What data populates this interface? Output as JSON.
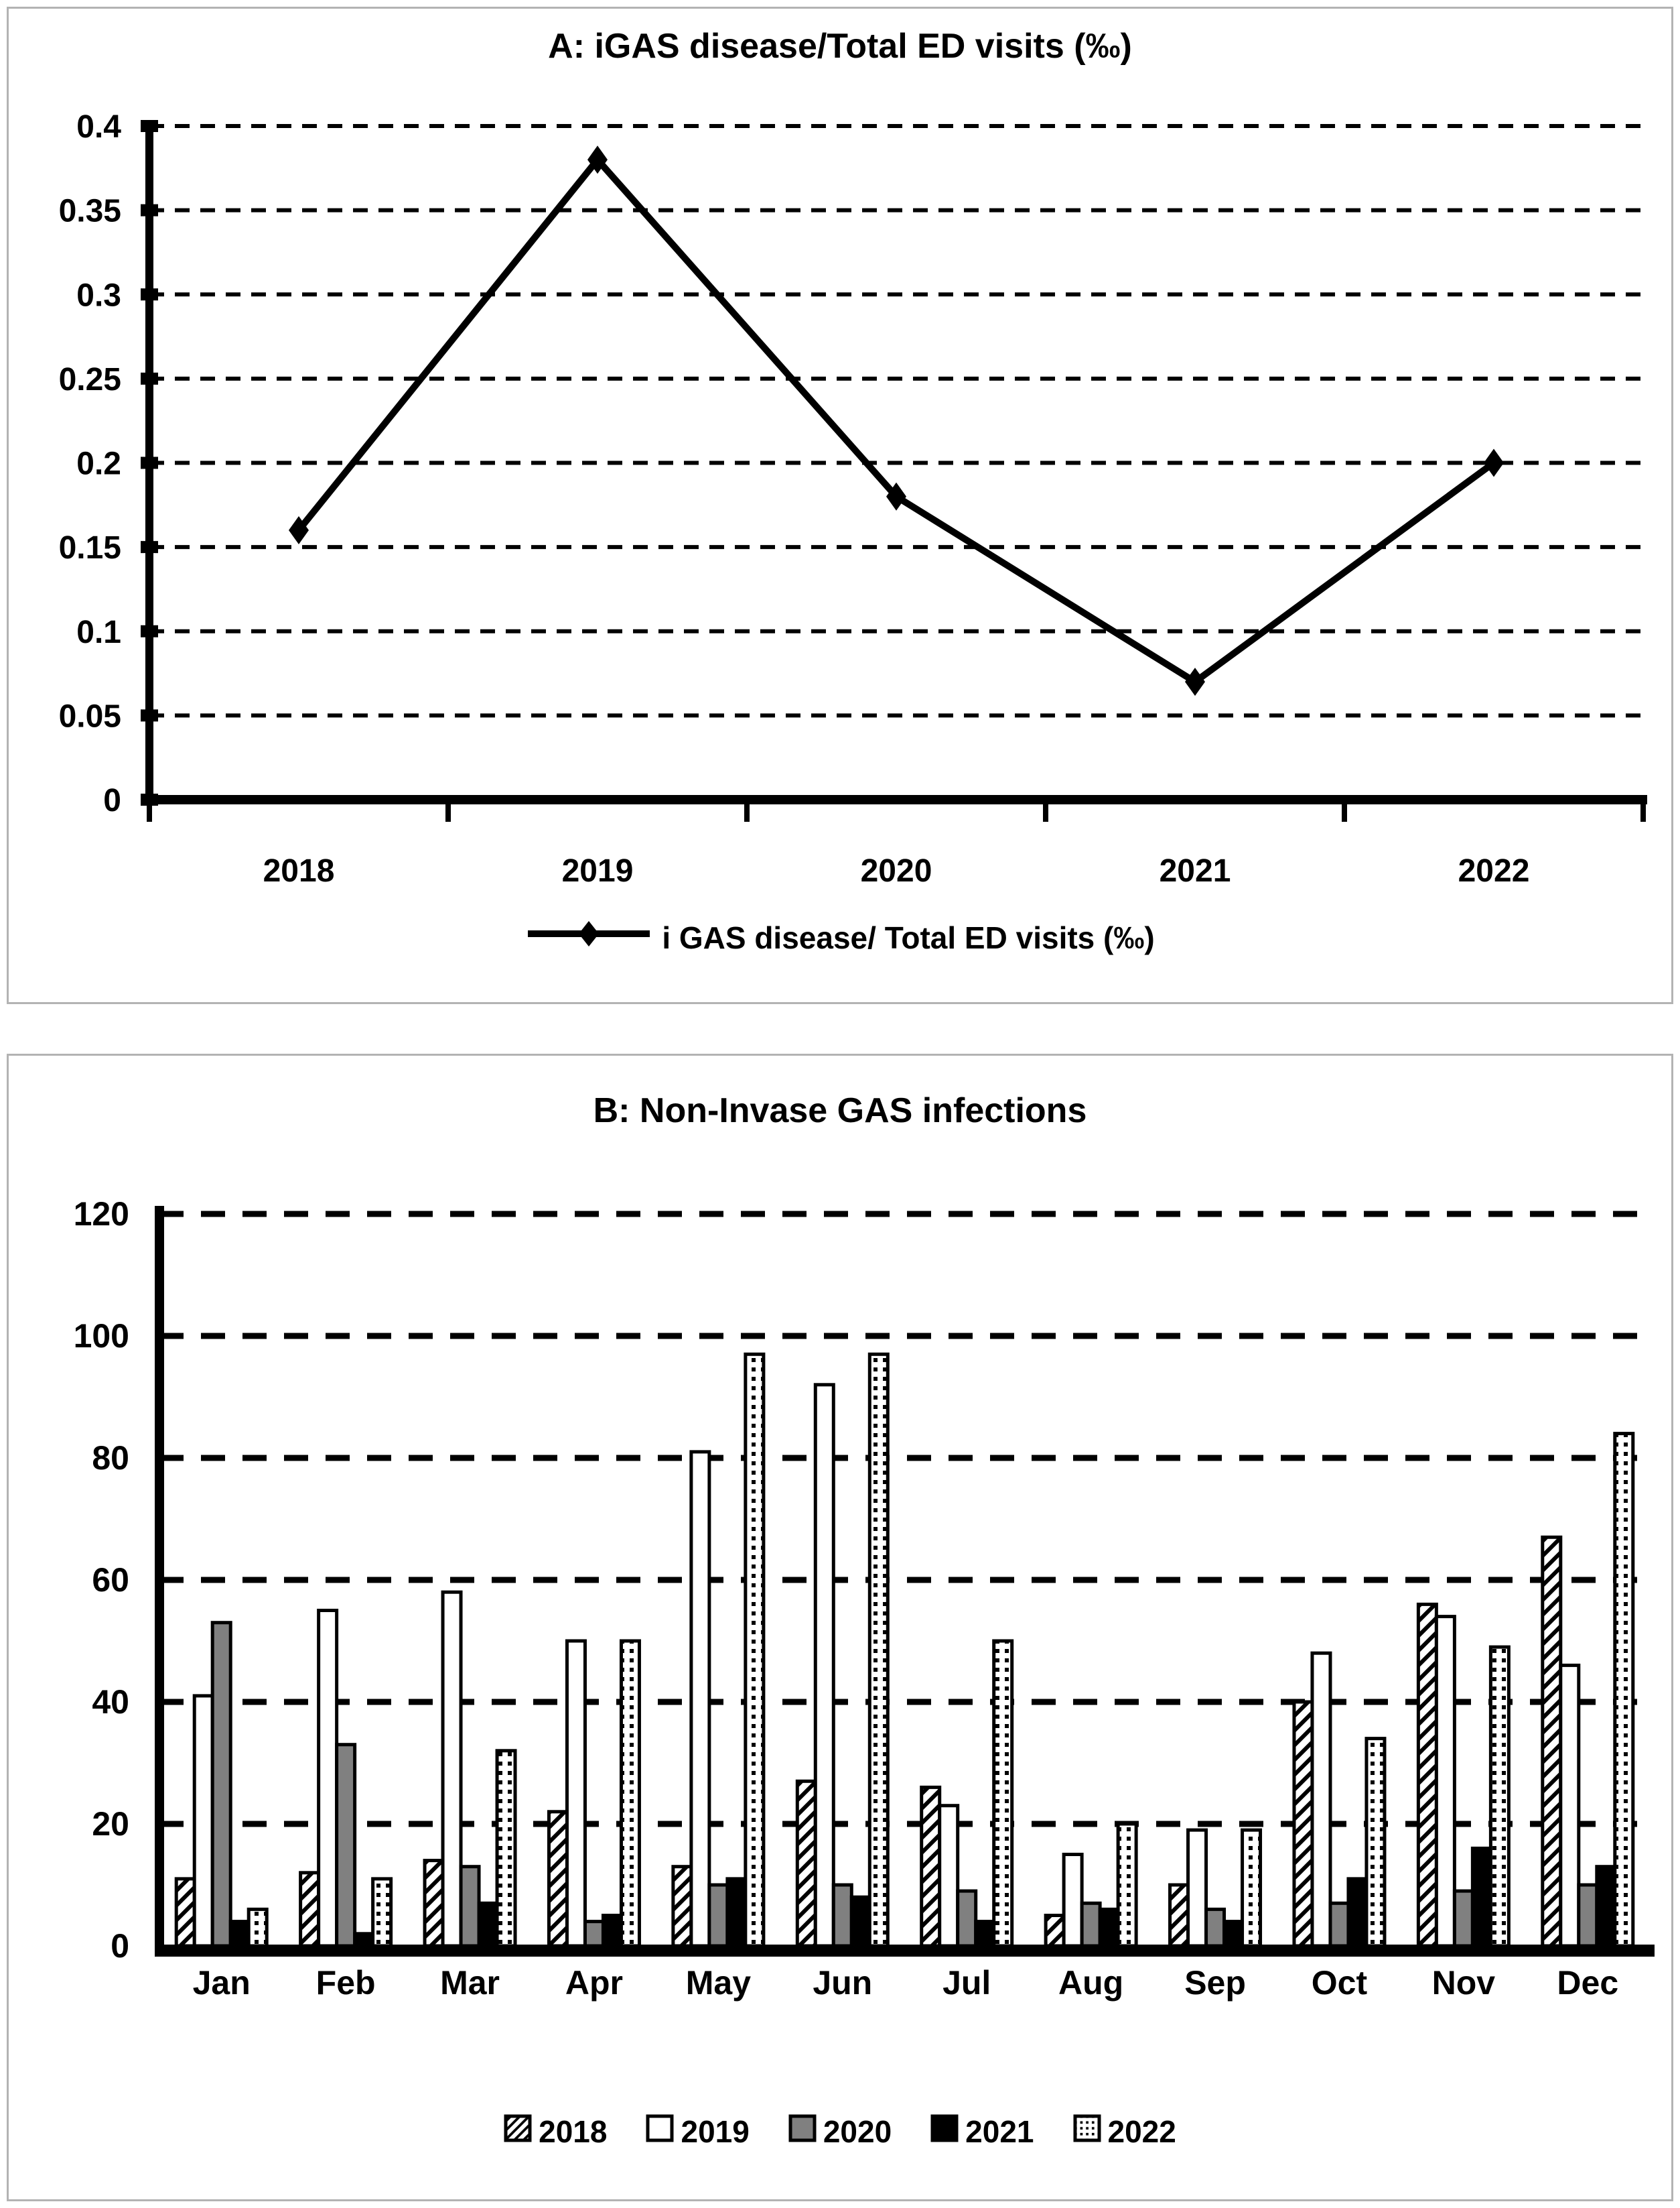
{
  "chart_data": [
    {
      "id": "panel-a",
      "type": "line",
      "title": "A: iGAS disease/Total ED visits (‰)",
      "categories": [
        "2018",
        "2019",
        "2020",
        "2021",
        "2022"
      ],
      "series": [
        {
          "name": "i GAS disease/ Total ED visits (‰)",
          "values": [
            0.16,
            0.38,
            0.18,
            0.07,
            0.2
          ]
        }
      ],
      "xlabel": "",
      "ylabel": "",
      "ylim": [
        0,
        0.4
      ],
      "yticks": [
        0,
        0.05,
        0.1,
        0.15,
        0.2,
        0.25,
        0.3,
        0.35,
        0.4
      ],
      "ytick_labels": [
        "0",
        "0.05",
        "0.1",
        "0.15",
        "0.2",
        "0.25",
        "0.3",
        "0.35",
        "0.4"
      ],
      "grid": "horizontal-dashed",
      "legend_position": "bottom",
      "marker": "diamond",
      "line_color": "#000000"
    },
    {
      "id": "panel-b",
      "type": "bar",
      "title": "B: Non-Invase GAS infections",
      "categories": [
        "Jan",
        "Feb",
        "Mar",
        "Apr",
        "May",
        "Jun",
        "Jul",
        "Aug",
        "Sep",
        "Oct",
        "Nov",
        "Dec"
      ],
      "series": [
        {
          "name": "2018",
          "pattern": "diagonal-hatch",
          "color": "#000000",
          "values": [
            11,
            12,
            14,
            22,
            13,
            27,
            26,
            5,
            10,
            40,
            56,
            67
          ]
        },
        {
          "name": "2019",
          "pattern": "plain-white",
          "color": "#ffffff",
          "values": [
            41,
            55,
            58,
            50,
            81,
            92,
            23,
            15,
            19,
            48,
            54,
            46
          ]
        },
        {
          "name": "2020",
          "pattern": "solid-gray",
          "color": "#808080",
          "values": [
            53,
            33,
            13,
            4,
            10,
            10,
            9,
            7,
            6,
            7,
            9,
            10
          ]
        },
        {
          "name": "2021",
          "pattern": "solid-black",
          "color": "#000000",
          "values": [
            4,
            2,
            7,
            5,
            11,
            8,
            4,
            6,
            4,
            11,
            16,
            13
          ]
        },
        {
          "name": "2022",
          "pattern": "fine-dots",
          "color": "#000000",
          "values": [
            6,
            11,
            32,
            50,
            97,
            97,
            50,
            20,
            19,
            34,
            49,
            84
          ]
        }
      ],
      "xlabel": "",
      "ylabel": "",
      "ylim": [
        0,
        120
      ],
      "yticks": [
        0,
        20,
        40,
        60,
        80,
        100,
        120
      ],
      "ytick_labels": [
        "0",
        "20",
        "40",
        "60",
        "80",
        "100",
        "120"
      ],
      "grid": "horizontal-dashed",
      "legend_position": "bottom"
    }
  ]
}
